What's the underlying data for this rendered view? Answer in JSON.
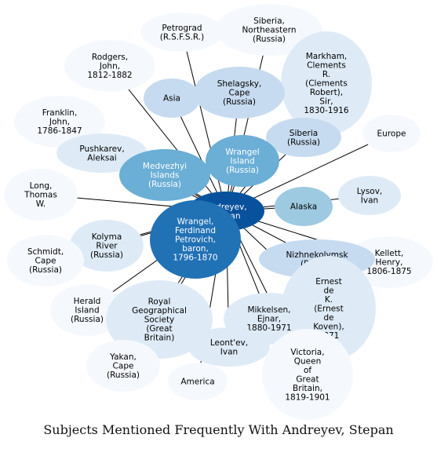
{
  "caption": "Subjects Mentioned Frequently With Andreyev, Stepan",
  "colors": {
    "level0": "#f5f9fe",
    "level1": "#deebf7",
    "level2": "#c6dbef",
    "level3": "#9ecae1",
    "level4": "#6baed6",
    "level5": "#2171b5",
    "level6": "#08519c",
    "edge": "#000000",
    "text_dark": "#000000",
    "text_light": "#ffffff"
  },
  "center": {
    "id": "andreyev",
    "label": "Andreyev,\nStepan",
    "shade": "level6"
  },
  "nodes": [
    {
      "id": "siberia-ne",
      "label": "Siberia,\nNortheastern\n(Russia)",
      "shade": "level0"
    },
    {
      "id": "petrograd",
      "label": "Petrograd\n(R.S.F.S.R.)",
      "shade": "level0"
    },
    {
      "id": "rodgers",
      "label": "Rodgers,\nJohn,\n1812-1882",
      "shade": "level0"
    },
    {
      "id": "markham",
      "label": "Markham,\nClements\nR.\n(Clements\nRobert),\nSir,\n1830-1916",
      "shade": "level1"
    },
    {
      "id": "shelagsky",
      "label": "Shelagsky,\nCape\n(Russia)",
      "shade": "level2"
    },
    {
      "id": "asia",
      "label": "Asia",
      "shade": "level2"
    },
    {
      "id": "franklin",
      "label": "Franklin,\nJohn,\n1786-1847",
      "shade": "level0"
    },
    {
      "id": "siberia",
      "label": "Siberia\n(Russia)",
      "shade": "level2"
    },
    {
      "id": "europe",
      "label": "Europe",
      "shade": "level0"
    },
    {
      "id": "pushkarev",
      "label": "Pushkarev,\nAleksai",
      "shade": "level1"
    },
    {
      "id": "wrangel-island",
      "label": "Wrangel\nIsland\n(Russia)",
      "shade": "level4"
    },
    {
      "id": "medvezhyi",
      "label": "Medvezhyi\nIslands\n(Russia)",
      "shade": "level4"
    },
    {
      "id": "long",
      "label": "Long,\nThomas\nW.",
      "shade": "level0"
    },
    {
      "id": "lysov",
      "label": "Lysov,\nIvan",
      "shade": "level1"
    },
    {
      "id": "alaska",
      "label": "Alaska",
      "shade": "level3"
    },
    {
      "id": "kolyma",
      "label": "Kolyma\nRiver\n(Russia)",
      "shade": "level1"
    },
    {
      "id": "schmidt",
      "label": "Schmidt,\nCape\n(Russia)",
      "shade": "level0"
    },
    {
      "id": "kellett",
      "label": "Kellett,\nHenry,\n1806-1875",
      "shade": "level0"
    },
    {
      "id": "nizhnekolymsk",
      "label": "Nizhnekolymsk\n(Russia)",
      "shade": "level2"
    },
    {
      "id": "koven",
      "label": "Ernest\nde\nK.\n(Ernest\nde\nKoven),\n1871",
      "shade": "level1"
    },
    {
      "id": "herald",
      "label": "Herald\nIsland\n(Russia)",
      "shade": "level0"
    },
    {
      "id": "rgs",
      "label": "Royal\nGeographical\nSociety\n(Great\nBritain)",
      "shade": "level1"
    },
    {
      "id": "mikkelsen",
      "label": "Mikkelsen,\nEjnar,\n1880-1971",
      "shade": "level1"
    },
    {
      "id": "leontev",
      "label": "Leont'ev,\nIvan",
      "shade": "level1"
    },
    {
      "id": "yakan",
      "label": "Yakan,\nCape\n(Russia)",
      "shade": "level0"
    },
    {
      "id": "america",
      "label": "America",
      "shade": "level0"
    },
    {
      "id": "victoria",
      "label": "Victoria,\nQueen\nof\nGreat\nBritain,\n1819-1901",
      "shade": "level0"
    },
    {
      "id": "wrangel-ferdinand",
      "label": "Wrangel,\nFerdinand\nPetrovich,\nbaron,\n1796-1870",
      "shade": "level5"
    }
  ]
}
